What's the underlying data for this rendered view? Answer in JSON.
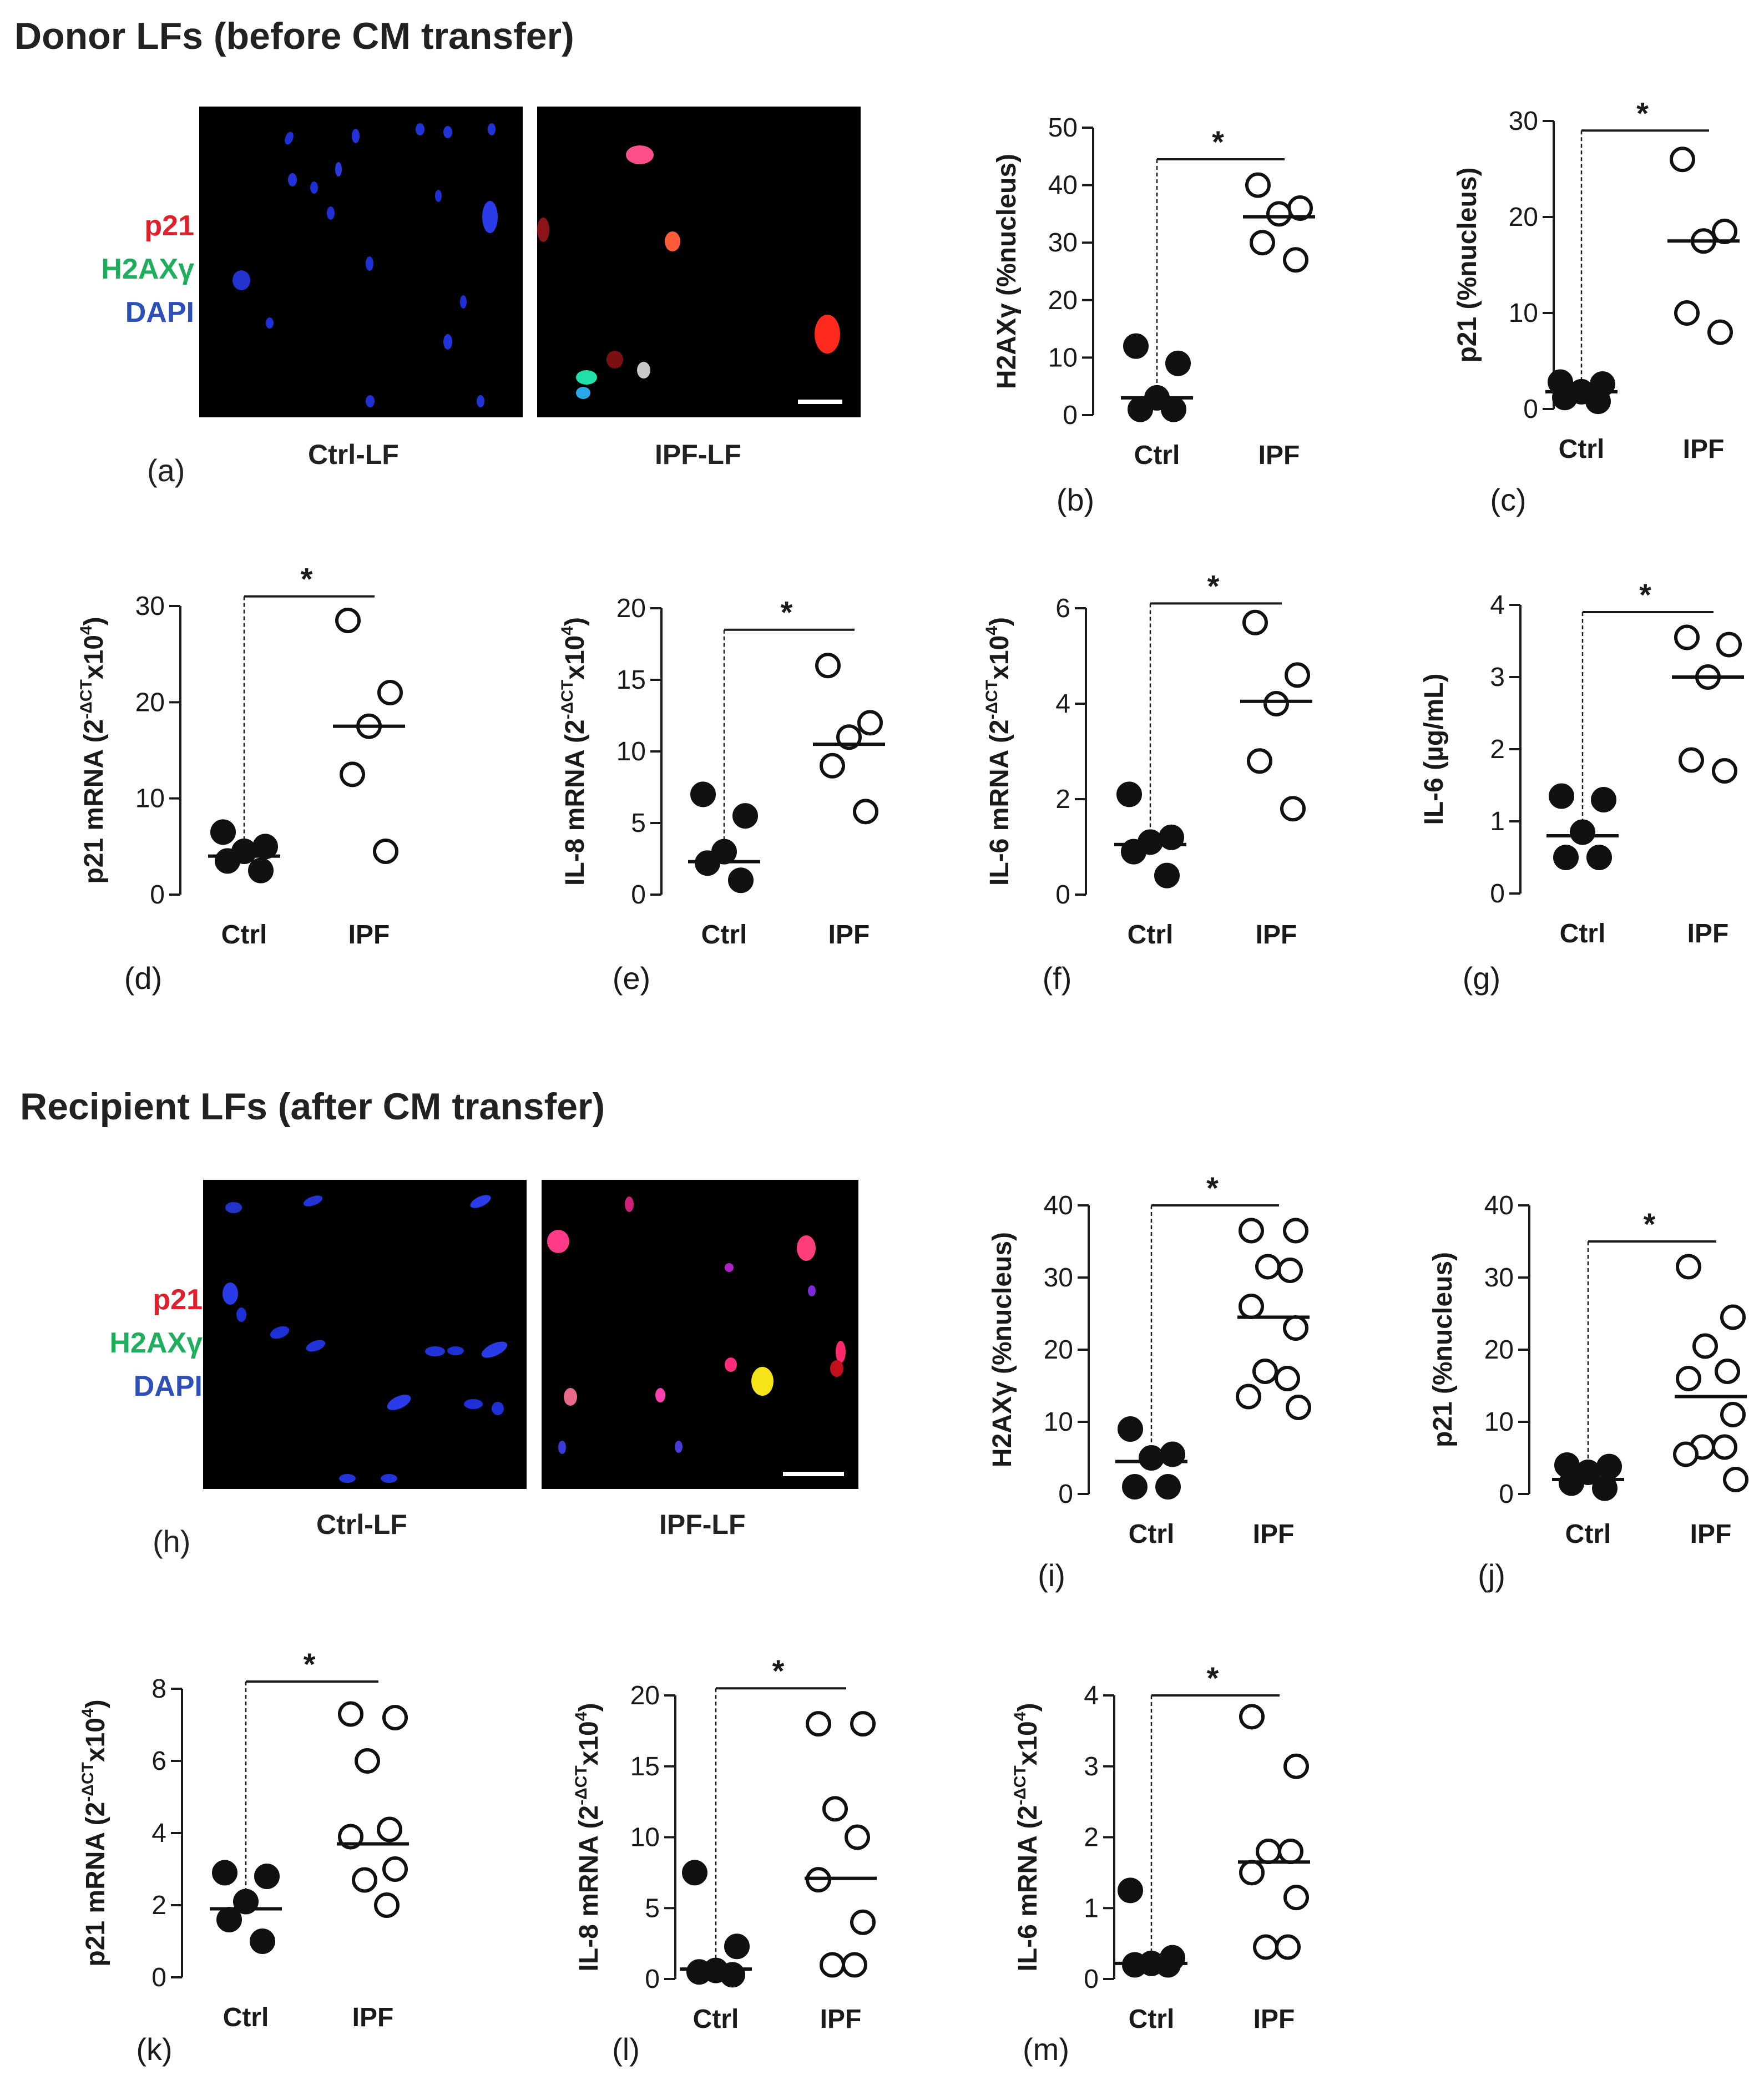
{
  "sections": {
    "donor_title": "Donor LFs (before CM transfer)",
    "recipient_title": "Recipient LFs (after CM transfer)"
  },
  "legend": {
    "p21": "p21",
    "h2ax": "H2AXγ",
    "dapi": "DAPI"
  },
  "images": {
    "ctrl_caption": "Ctrl-LF",
    "ipf_caption": "IPF-LF"
  },
  "colors": {
    "p21": "#e0202a",
    "h2ax": "#1fae5e",
    "dapi": "#2d4fb8",
    "axis": "#1a1a1a"
  },
  "panel_labels": {
    "a": "(a)",
    "h": "(h)"
  },
  "significance_marker": "*",
  "chart_data": [
    {
      "id": "b",
      "panel": "(b)",
      "type": "scatter",
      "ylabel": "H2AXγ (%nucleus)",
      "yticks": [
        0,
        10,
        20,
        30,
        40,
        50
      ],
      "ylim": [
        0,
        50
      ],
      "categories": [
        "Ctrl",
        "IPF"
      ],
      "ctrl": [
        12,
        9,
        3,
        1,
        1
      ],
      "ipf": [
        40,
        36,
        35,
        30,
        27
      ],
      "ctrl_mean": 3,
      "ipf_mean": 34.5,
      "bar_y": 44.5
    },
    {
      "id": "c",
      "panel": "(c)",
      "type": "scatter",
      "ylabel": "p21 (%nucleus)",
      "yticks": [
        0,
        10,
        20,
        30
      ],
      "ylim": [
        0,
        30
      ],
      "categories": [
        "Ctrl",
        "IPF"
      ],
      "ctrl": [
        2.8,
        2.6,
        1.8,
        1.2,
        0.8
      ],
      "ipf": [
        26,
        18.5,
        17.5,
        10,
        8
      ],
      "ctrl_mean": 1.8,
      "ipf_mean": 17.5,
      "bar_y": 29
    },
    {
      "id": "d",
      "panel": "(d)",
      "type": "scatter",
      "ylabel_main": "p21 mRNA (2",
      "ylabel_sup": "-ΔCT",
      "ylabel_tail": "x10",
      "ylabel_sup2": "4",
      "ylabel_end": ")",
      "yticks": [
        0,
        10,
        20,
        30
      ],
      "ylim": [
        0,
        30
      ],
      "categories": [
        "Ctrl",
        "IPF"
      ],
      "ctrl": [
        6.5,
        5,
        4.5,
        3.5,
        2.5
      ],
      "ipf": [
        28.5,
        21,
        17.5,
        12.5,
        4.5
      ],
      "ctrl_mean": 4,
      "ipf_mean": 17.5,
      "bar_y": 31
    },
    {
      "id": "e",
      "panel": "(e)",
      "type": "scatter",
      "ylabel_main": "IL-8 mRNA (2",
      "ylabel_sup": "-ΔCT",
      "ylabel_tail": "x10",
      "ylabel_sup2": "4",
      "ylabel_end": ")",
      "yticks": [
        0,
        5,
        10,
        15,
        20
      ],
      "ylim": [
        0,
        20
      ],
      "categories": [
        "Ctrl",
        "IPF"
      ],
      "ctrl": [
        7,
        5.5,
        3,
        2.2,
        1
      ],
      "ipf": [
        16,
        12,
        11,
        9,
        5.8
      ],
      "ctrl_mean": 2.3,
      "ipf_mean": 10.5,
      "bar_y": 18.5
    },
    {
      "id": "f",
      "panel": "(f)",
      "type": "scatter",
      "ylabel_main": "IL-6 mRNA (2",
      "ylabel_sup": "-ΔCT",
      "ylabel_tail": "x10",
      "ylabel_sup2": "4",
      "ylabel_end": ")",
      "yticks": [
        0,
        2,
        4,
        6
      ],
      "ylim": [
        0,
        6
      ],
      "categories": [
        "Ctrl",
        "IPF"
      ],
      "ctrl": [
        2.1,
        1.2,
        1.1,
        0.9,
        0.4
      ],
      "ipf": [
        5.7,
        4.6,
        4.0,
        2.8,
        1.8
      ],
      "ctrl_mean": 1.05,
      "ipf_mean": 4.05,
      "bar_y": 6.1
    },
    {
      "id": "g",
      "panel": "(g)",
      "type": "scatter",
      "ylabel": "IL-6 (µg/mL)",
      "yticks": [
        0,
        1,
        2,
        3,
        4
      ],
      "ylim": [
        0,
        4
      ],
      "categories": [
        "Ctrl",
        "IPF"
      ],
      "ctrl": [
        1.35,
        1.3,
        0.85,
        0.5,
        0.5
      ],
      "ipf": [
        3.55,
        3.45,
        3.0,
        1.85,
        1.7
      ],
      "ctrl_mean": 0.8,
      "ipf_mean": 3.0,
      "bar_y": 3.9
    },
    {
      "id": "i",
      "panel": "(i)",
      "type": "scatter",
      "ylabel": "H2AXγ (%nucleus)",
      "yticks": [
        0,
        10,
        20,
        30,
        40
      ],
      "ylim": [
        0,
        40
      ],
      "categories": [
        "Ctrl",
        "IPF"
      ],
      "ctrl": [
        9,
        5.5,
        5,
        1,
        1
      ],
      "ipf": [
        36.5,
        36.5,
        31.5,
        31,
        26,
        23,
        17,
        16,
        13.5,
        12
      ],
      "ctrl_mean": 4.5,
      "ipf_mean": 24.5,
      "bar_y": 40
    },
    {
      "id": "j",
      "panel": "(j)",
      "type": "scatter",
      "ylabel": "p21 (%nucleus)",
      "yticks": [
        0,
        10,
        20,
        30,
        40
      ],
      "ylim": [
        0,
        40
      ],
      "categories": [
        "Ctrl",
        "IPF"
      ],
      "ctrl": [
        4,
        3.8,
        3,
        1.5,
        0.8
      ],
      "ipf": [
        31.5,
        24.5,
        20.5,
        17,
        16,
        11,
        6.5,
        6.5,
        5.5,
        2
      ],
      "ctrl_mean": 2,
      "ipf_mean": 13.5,
      "bar_y": 35
    },
    {
      "id": "k",
      "panel": "(k)",
      "type": "scatter",
      "ylabel_main": "p21 mRNA (2",
      "ylabel_sup": "-ΔCT",
      "ylabel_tail": "x10",
      "ylabel_sup2": "4",
      "ylabel_end": ")",
      "yticks": [
        0,
        2,
        4,
        6,
        8
      ],
      "ylim": [
        0,
        8
      ],
      "categories": [
        "Ctrl",
        "IPF"
      ],
      "ctrl": [
        2.9,
        2.8,
        2.1,
        1.6,
        1.0
      ],
      "ipf": [
        7.3,
        7.2,
        6.0,
        4.1,
        3.9,
        3.0,
        2.7,
        2.0
      ],
      "ctrl_mean": 1.9,
      "ipf_mean": 3.7,
      "bar_y": 8.2
    },
    {
      "id": "l",
      "panel": "(l)",
      "type": "scatter",
      "ylabel_main": "IL-8 mRNA (2",
      "ylabel_sup": "-ΔCT",
      "ylabel_tail": "x10",
      "ylabel_sup2": "4",
      "ylabel_end": ")",
      "yticks": [
        0,
        5,
        10,
        15,
        20
      ],
      "ylim": [
        0,
        20
      ],
      "categories": [
        "Ctrl",
        "IPF"
      ],
      "ctrl": [
        7.5,
        2.3,
        0.6,
        0.5,
        0.3
      ],
      "ipf": [
        18,
        18,
        12,
        10,
        7,
        4,
        1,
        1
      ],
      "ctrl_mean": 0.7,
      "ipf_mean": 7.1,
      "bar_y": 20.5
    },
    {
      "id": "m",
      "panel": "(m)",
      "type": "scatter",
      "ylabel_main": "IL-6 mRNA (2",
      "ylabel_sup": "-ΔCT",
      "ylabel_tail": "x10",
      "ylabel_sup2": "4",
      "ylabel_end": ")",
      "yticks": [
        0,
        1,
        2,
        3,
        4
      ],
      "ylim": [
        0,
        4
      ],
      "categories": [
        "Ctrl",
        "IPF"
      ],
      "ctrl": [
        1.25,
        0.3,
        0.22,
        0.2,
        0.2
      ],
      "ipf": [
        3.7,
        3.0,
        1.8,
        1.8,
        1.5,
        1.15,
        0.45,
        0.45
      ],
      "ctrl_mean": 0.22,
      "ipf_mean": 1.65,
      "bar_y": 4.0
    }
  ]
}
